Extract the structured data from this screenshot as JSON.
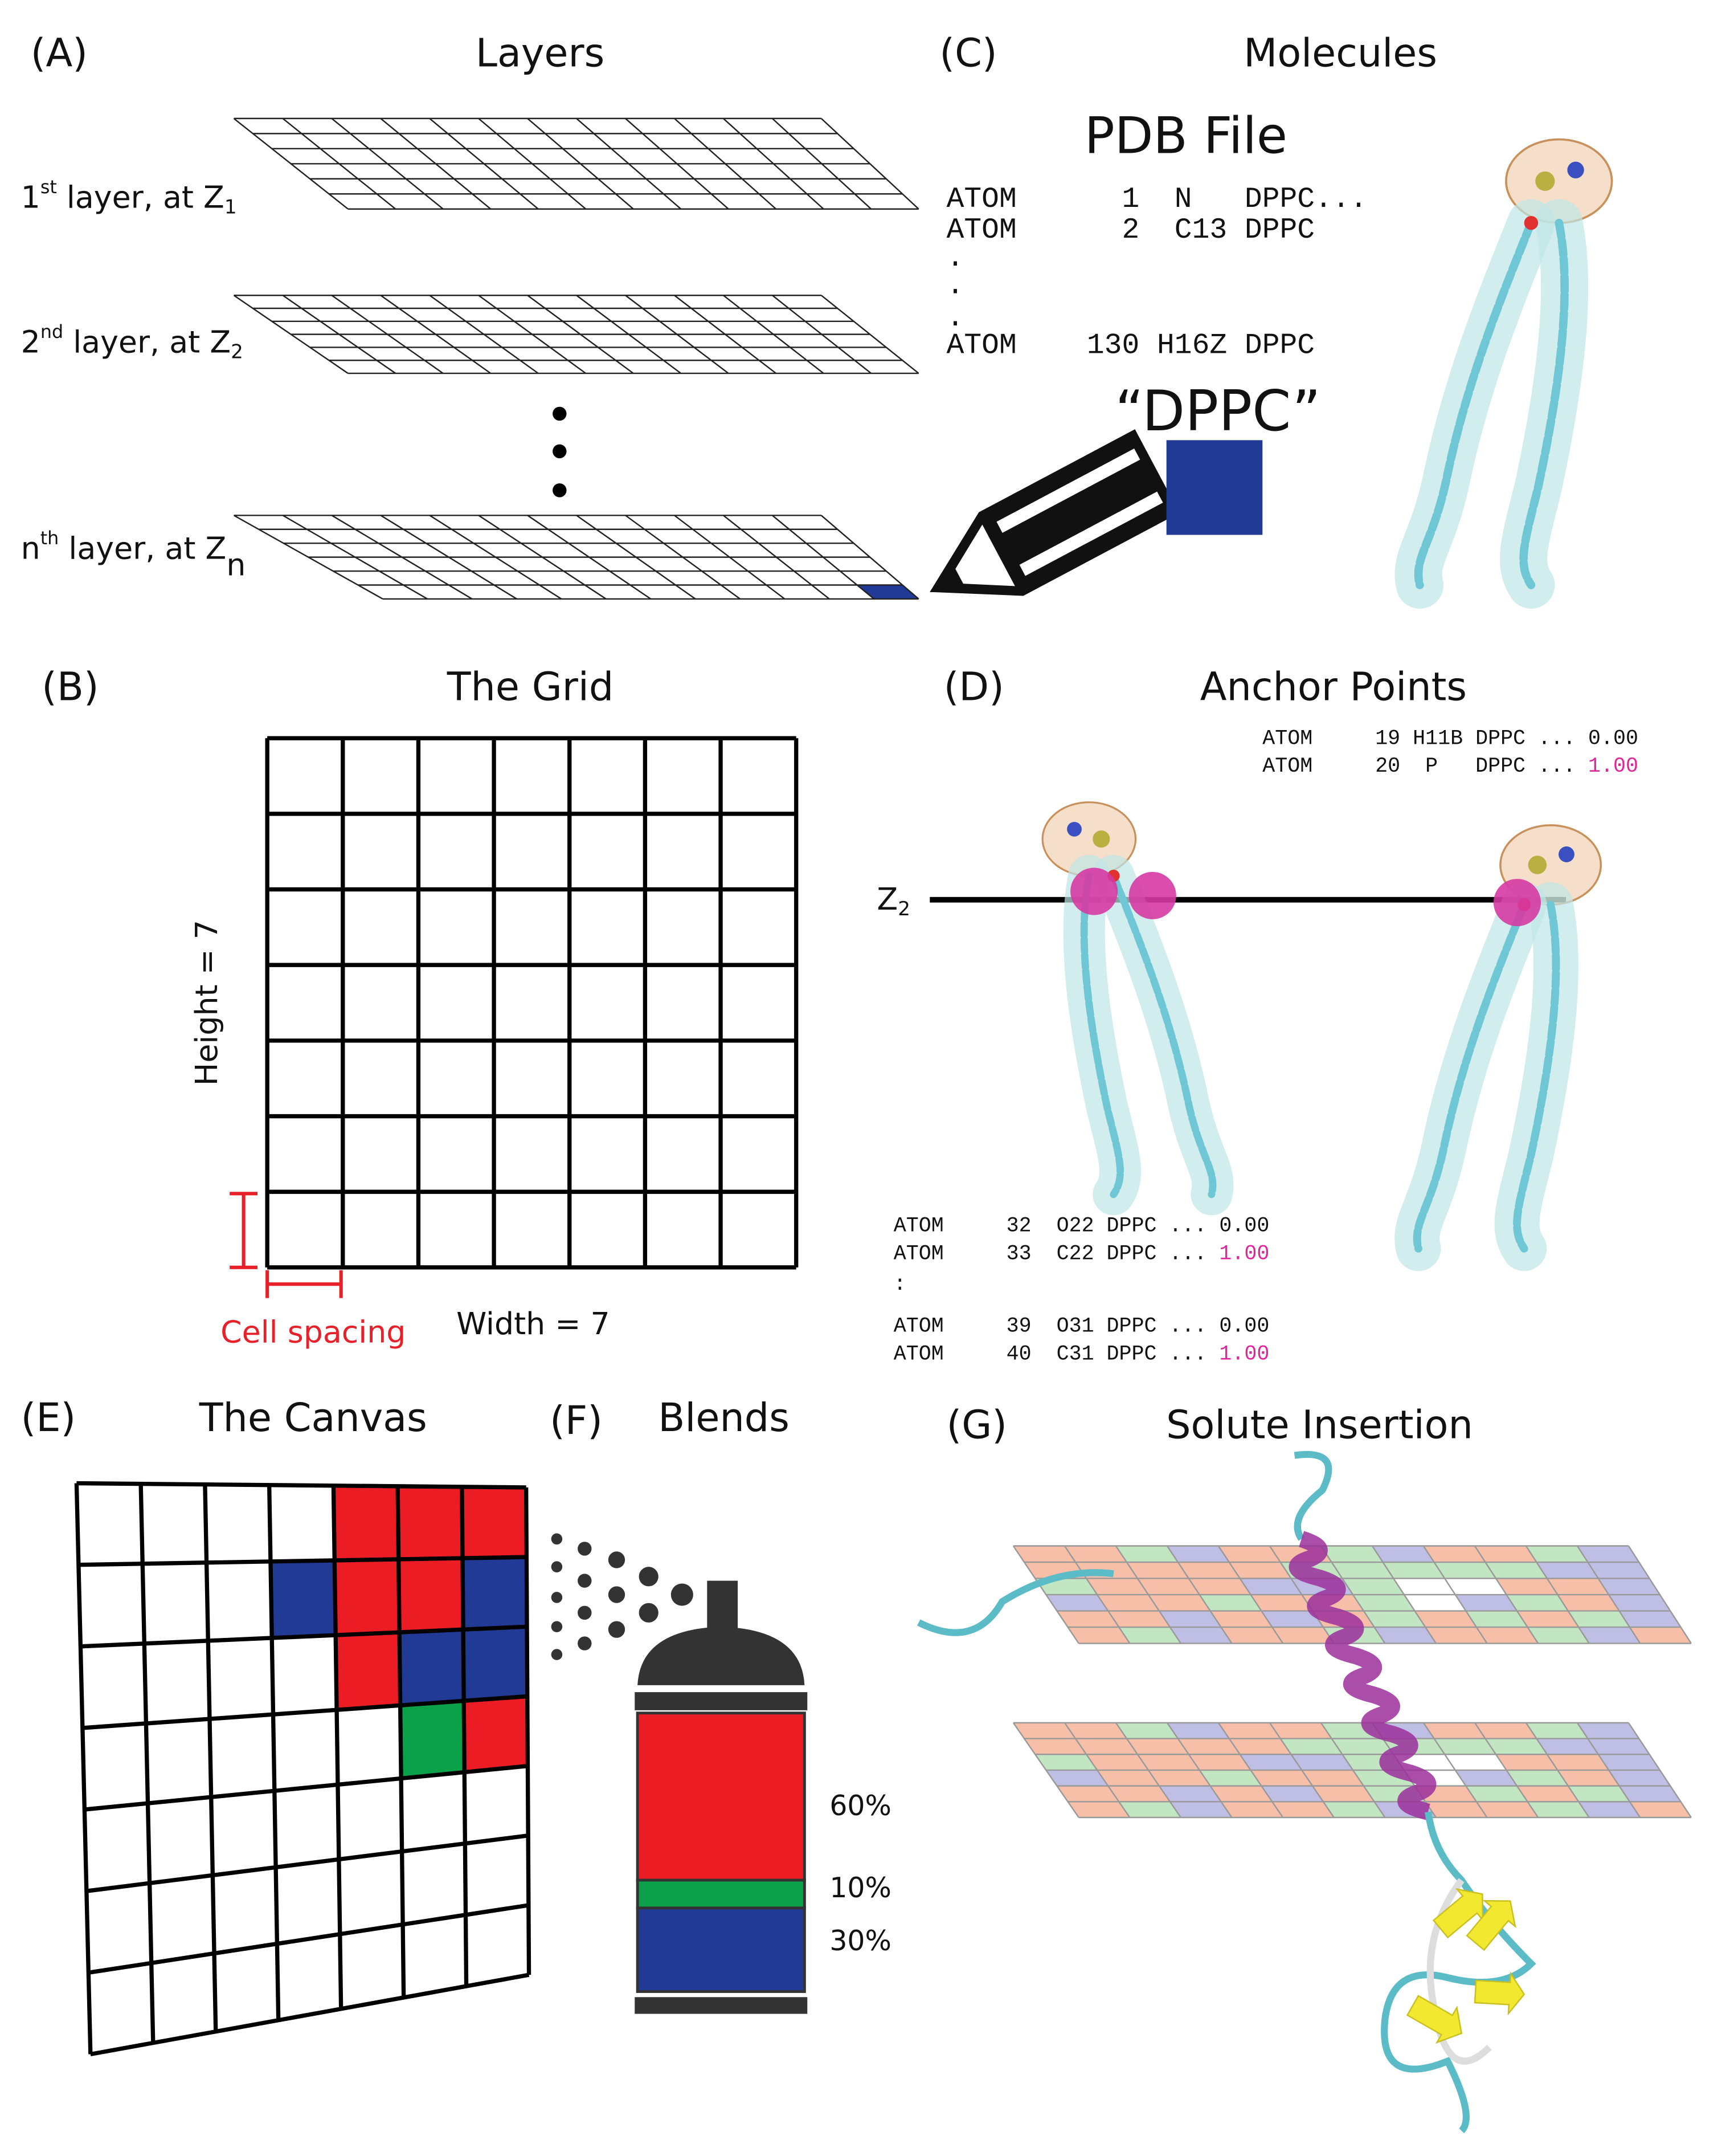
{
  "panels": {
    "a": {
      "label": "(A)",
      "title": "Layers",
      "layers": [
        {
          "num": "1",
          "sup": "st",
          "text": " layer, at Z",
          "sub": "1"
        },
        {
          "num": "2",
          "sup": "nd",
          "text": " layer, at Z",
          "sub": "2"
        },
        {
          "num": "n",
          "sup": "th",
          "text": " layer, at Z",
          "sub": "n"
        }
      ]
    },
    "b": {
      "label": "(B)",
      "title": "The Grid",
      "height": "Height = 7",
      "width": "Width = 7",
      "spacing": "Cell spacing"
    },
    "c": {
      "label": "(C)",
      "title": "Molecules",
      "file": "PDB File",
      "lines": [
        "ATOM      1  N   DPPC...",
        "ATOM      2  C13 DPPC",
        ".",
        ".",
        ".",
        "ATOM    130 H16Z DPPC"
      ],
      "resname": "“DPPC”"
    },
    "d": {
      "label": "(D)",
      "title": "Anchor Points",
      "top_lines": [
        {
          "text": "ATOM     19 H11B DPPC ... ",
          "value": "0.00",
          "highlight": false
        },
        {
          "text": "ATOM     20  P   DPPC ... ",
          "value": "1.00",
          "highlight": true
        }
      ],
      "plane": {
        "text": "Z",
        "sub": "2"
      },
      "bottom_lines": [
        {
          "text": "ATOM     32  O22 DPPC ... ",
          "value": "0.00",
          "highlight": false
        },
        {
          "text": "ATOM     33  C22 DPPC ... ",
          "value": "1.00",
          "highlight": true
        },
        {
          "text": ":"
        },
        {
          "text": "ATOM     39  O31 DPPC ... ",
          "value": "0.00",
          "highlight": false
        },
        {
          "text": "ATOM     40  C31 DPPC ... ",
          "value": "1.00",
          "highlight": true
        }
      ]
    },
    "e": {
      "label": "(E)",
      "title": "The Canvas"
    },
    "f": {
      "label": "(F)",
      "title": "Blends",
      "fractions": [
        "60%",
        "10%",
        "30%"
      ]
    },
    "g": {
      "label": "(G)",
      "title": "Solute Insertion"
    }
  }
}
